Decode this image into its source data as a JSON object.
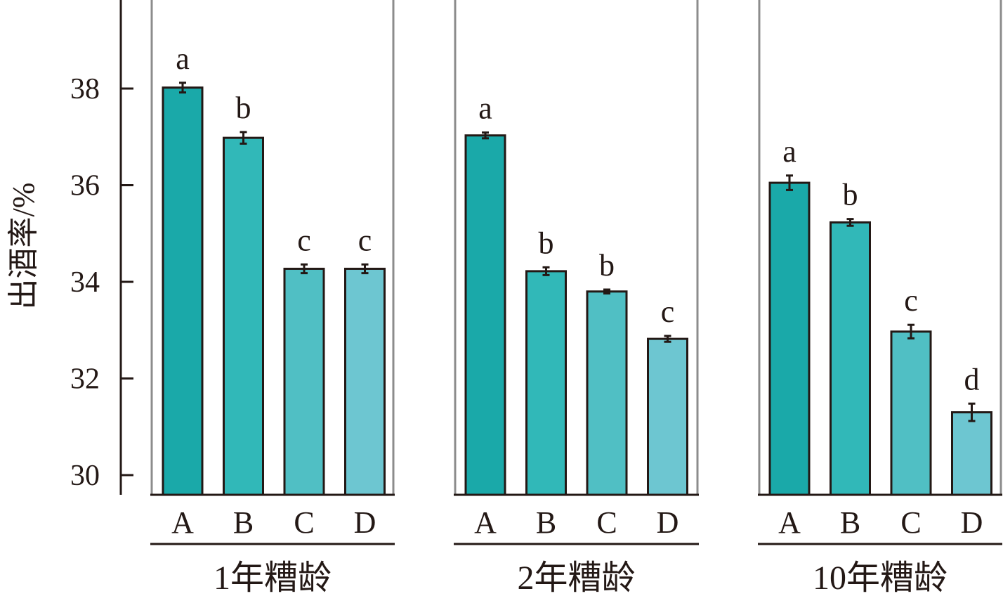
{
  "chart_data": {
    "type": "bar",
    "ylabel": "出酒率/%",
    "ylim": [
      29.6,
      39.9
    ],
    "yticks": [
      30,
      32,
      34,
      36,
      38
    ],
    "categories": [
      "A",
      "B",
      "C",
      "D"
    ],
    "colors": [
      "#1aa9a9",
      "#31b8b8",
      "#50bfc4",
      "#6dc6d1"
    ],
    "groups": [
      {
        "name": "1年糟龄",
        "values": [
          38.02,
          36.98,
          34.27,
          34.27
        ],
        "errors": [
          0.1,
          0.12,
          0.09,
          0.09
        ],
        "labels": [
          "a",
          "b",
          "c",
          "c"
        ]
      },
      {
        "name": "2年糟龄",
        "values": [
          37.03,
          34.22,
          33.8,
          32.82
        ],
        "errors": [
          0.06,
          0.08,
          0.04,
          0.06
        ],
        "labels": [
          "a",
          "b",
          "b",
          "c"
        ]
      },
      {
        "name": "10年糟龄",
        "values": [
          36.05,
          35.23,
          32.97,
          31.3
        ],
        "errors": [
          0.15,
          0.07,
          0.14,
          0.18
        ],
        "labels": [
          "a",
          "b",
          "c",
          "d"
        ]
      }
    ]
  }
}
